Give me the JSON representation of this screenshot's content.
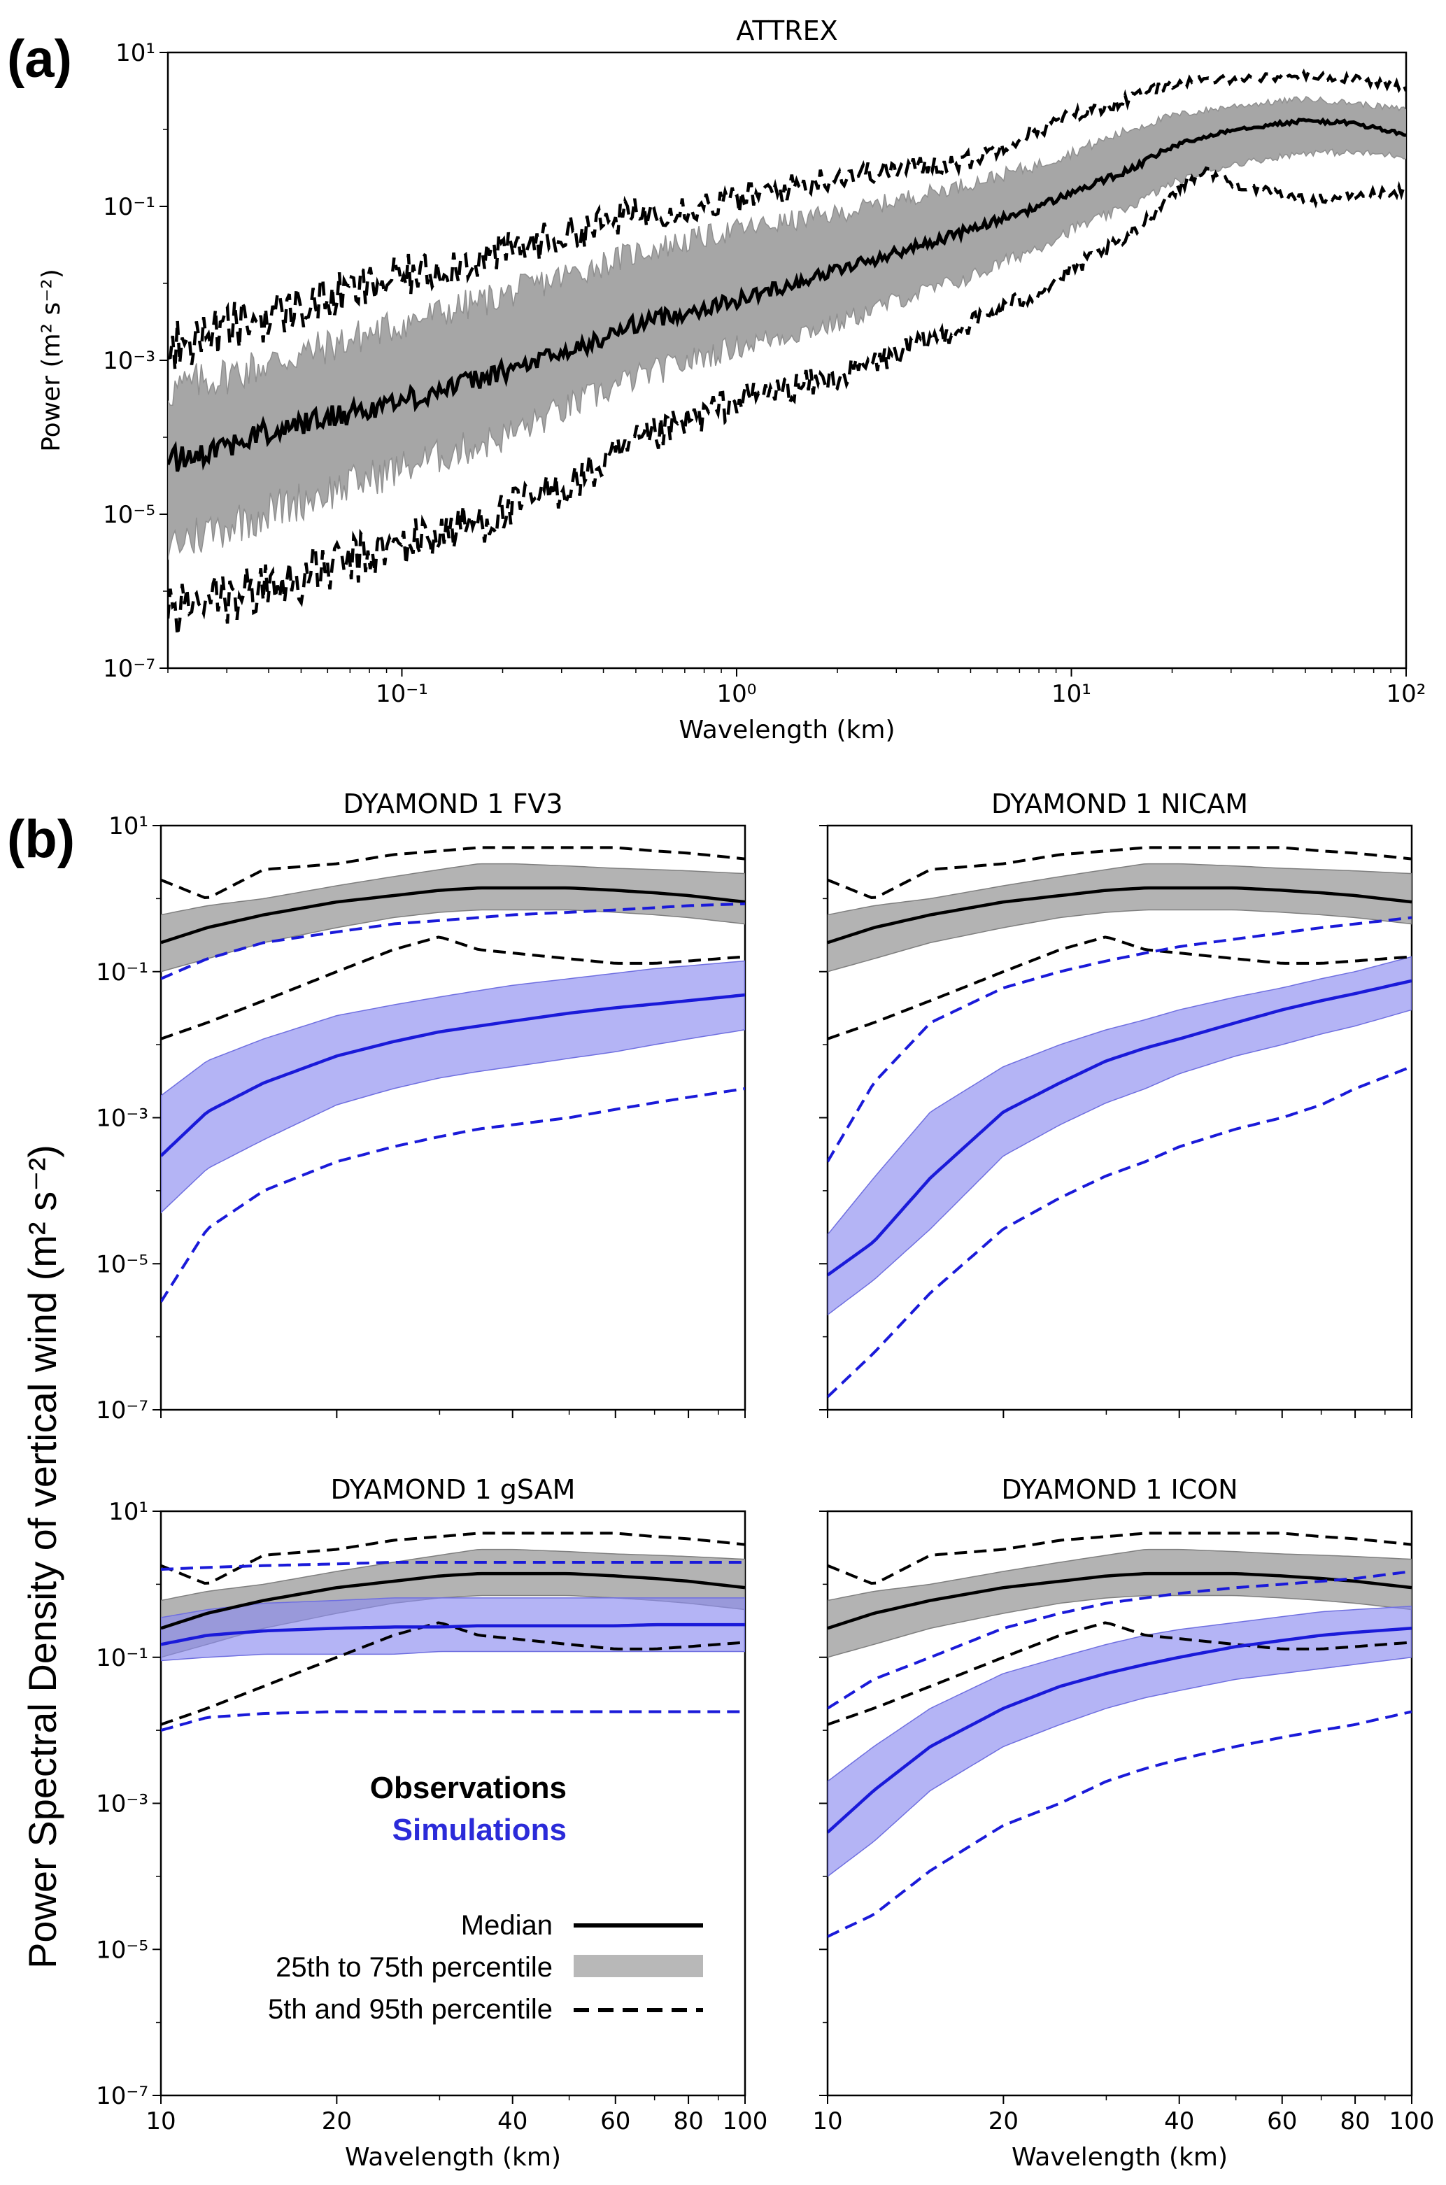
{
  "figure": {
    "panel_a_letter": "(a)",
    "panel_b_letter": "(b)",
    "shared_ylabel_b": "Power Spectral Density of vertical wind (m² s⁻²)"
  },
  "colors": {
    "obs_line": "#000000",
    "obs_band": "#a6a6a6",
    "sim_line": "#1a1ad9",
    "sim_band": "#8c8cf0"
  },
  "legend": {
    "observations": "Observations",
    "simulations": "Simulations",
    "median": "Median",
    "iqr": "25th to 75th percentile",
    "p5_95": "5th and 95th percentile"
  },
  "chart_data": [
    {
      "id": "attrex",
      "type": "line",
      "title": "ATTREX",
      "xlabel": "Wavelength (km)",
      "ylabel": "Power (m² s⁻²)",
      "xscale": "log",
      "yscale": "log",
      "xlim": [
        0.02,
        100
      ],
      "ylim": [
        1e-07,
        10
      ],
      "xticks": [
        {
          "v": 0.1,
          "label": "10⁻¹"
        },
        {
          "v": 1,
          "label": "10⁰"
        },
        {
          "v": 10,
          "label": "10¹"
        },
        {
          "v": 100,
          "label": "10²"
        }
      ],
      "yticks": [
        {
          "v": 1e-07,
          "label": "10⁻⁷"
        },
        {
          "v": 1e-05,
          "label": "10⁻⁵"
        },
        {
          "v": 0.001,
          "label": "10⁻³"
        },
        {
          "v": 0.1,
          "label": "10⁻¹"
        },
        {
          "v": 10,
          "label": "10¹"
        }
      ],
      "series": [
        {
          "role": "p95",
          "style": "dashed",
          "color": "obs",
          "noise": 0.35,
          "x": [
            0.02,
            0.05,
            0.1,
            0.2,
            0.35,
            0.5,
            1,
            2,
            3,
            5,
            8,
            10,
            15,
            20,
            30,
            50,
            70,
            100
          ],
          "y": [
            0.0015,
            0.005,
            0.012,
            0.025,
            0.05,
            0.08,
            0.12,
            0.25,
            0.3,
            0.4,
            1.0,
            1.5,
            2.5,
            4.0,
            4.5,
            5.0,
            4.5,
            3.5
          ]
        },
        {
          "role": "p75",
          "style": "band-top",
          "color": "obs",
          "x": [
            0.02,
            0.05,
            0.1,
            0.2,
            0.35,
            0.5,
            1,
            2,
            3,
            5,
            8,
            10,
            15,
            20,
            30,
            50,
            70,
            100
          ],
          "y": [
            0.0004,
            0.0012,
            0.003,
            0.007,
            0.015,
            0.025,
            0.05,
            0.08,
            0.12,
            0.2,
            0.35,
            0.5,
            1.0,
            1.5,
            2.0,
            2.5,
            2.2,
            1.8
          ]
        },
        {
          "role": "median",
          "style": "solid",
          "color": "obs",
          "noise": 0.18,
          "x": [
            0.02,
            0.05,
            0.1,
            0.2,
            0.35,
            0.5,
            1,
            2,
            3,
            5,
            8,
            10,
            15,
            20,
            30,
            50,
            70,
            100
          ],
          "y": [
            5e-05,
            0.00015,
            0.0003,
            0.0007,
            0.0015,
            0.003,
            0.006,
            0.015,
            0.025,
            0.05,
            0.1,
            0.15,
            0.3,
            0.6,
            1.0,
            1.3,
            1.2,
            0.85
          ]
        },
        {
          "role": "p25",
          "style": "band-bottom",
          "color": "obs",
          "x": [
            0.02,
            0.05,
            0.1,
            0.2,
            0.35,
            0.5,
            1,
            2,
            3,
            5,
            8,
            10,
            15,
            20,
            30,
            50,
            70,
            100
          ],
          "y": [
            4e-06,
            1.5e-05,
            4e-05,
            0.0001,
            0.0003,
            0.0006,
            0.0015,
            0.003,
            0.006,
            0.012,
            0.03,
            0.05,
            0.1,
            0.2,
            0.35,
            0.5,
            0.5,
            0.45
          ]
        },
        {
          "role": "p5",
          "style": "dashed",
          "color": "obs",
          "noise": 0.4,
          "x": [
            0.02,
            0.05,
            0.1,
            0.2,
            0.35,
            0.5,
            1,
            2,
            3,
            5,
            8,
            10,
            15,
            20,
            25,
            30,
            50,
            70,
            100
          ],
          "y": [
            5e-07,
            1.5e-06,
            4e-06,
            1e-05,
            3e-05,
            8e-05,
            0.0003,
            0.0006,
            0.0012,
            0.003,
            0.008,
            0.015,
            0.04,
            0.15,
            0.3,
            0.2,
            0.12,
            0.14,
            0.16
          ]
        }
      ]
    },
    {
      "id": "fv3",
      "type": "line",
      "title": "DYAMOND 1 FV3",
      "xlabel": "",
      "xscale": "log",
      "yscale": "log",
      "xlim": [
        10,
        100
      ],
      "ylim": [
        1e-07,
        10
      ],
      "obs": {
        "x": [
          10,
          12,
          15,
          20,
          25,
          30,
          35,
          40,
          50,
          60,
          70,
          80,
          100
        ],
        "p95": [
          1.8,
          1.0,
          2.5,
          3.0,
          4.0,
          4.5,
          5.0,
          5.0,
          5.0,
          5.0,
          4.5,
          4.2,
          3.5
        ],
        "p75": [
          0.6,
          0.8,
          1.0,
          1.5,
          2.0,
          2.5,
          3.0,
          3.0,
          2.8,
          2.6,
          2.5,
          2.4,
          2.2
        ],
        "median": [
          0.25,
          0.4,
          0.6,
          0.9,
          1.1,
          1.3,
          1.4,
          1.4,
          1.4,
          1.3,
          1.2,
          1.1,
          0.9
        ],
        "p25": [
          0.1,
          0.15,
          0.25,
          0.4,
          0.55,
          0.65,
          0.7,
          0.7,
          0.7,
          0.65,
          0.6,
          0.55,
          0.45
        ],
        "p5": [
          0.012,
          0.02,
          0.04,
          0.1,
          0.2,
          0.3,
          0.2,
          0.18,
          0.15,
          0.13,
          0.13,
          0.14,
          0.16
        ]
      },
      "sim": {
        "x": [
          10,
          12,
          15,
          20,
          25,
          30,
          35,
          40,
          50,
          60,
          70,
          80,
          100
        ],
        "p95": [
          0.08,
          0.15,
          0.25,
          0.35,
          0.45,
          0.5,
          0.55,
          0.6,
          0.65,
          0.7,
          0.75,
          0.8,
          0.85
        ],
        "p75": [
          0.002,
          0.006,
          0.012,
          0.025,
          0.035,
          0.045,
          0.055,
          0.065,
          0.08,
          0.095,
          0.11,
          0.12,
          0.14
        ],
        "median": [
          0.0003,
          0.0012,
          0.003,
          0.007,
          0.011,
          0.015,
          0.018,
          0.021,
          0.027,
          0.032,
          0.036,
          0.04,
          0.048
        ],
        "p25": [
          5e-05,
          0.0002,
          0.0005,
          0.0015,
          0.0025,
          0.0035,
          0.0043,
          0.005,
          0.0065,
          0.008,
          0.01,
          0.012,
          0.016
        ],
        "p5": [
          3e-06,
          3e-05,
          0.0001,
          0.00025,
          0.0004,
          0.00055,
          0.0007,
          0.0008,
          0.001,
          0.0013,
          0.0016,
          0.0019,
          0.0025
        ]
      }
    },
    {
      "id": "nicam",
      "type": "line",
      "title": "DYAMOND 1 NICAM",
      "xlabel": "",
      "xscale": "log",
      "yscale": "log",
      "xlim": [
        10,
        100
      ],
      "ylim": [
        1e-07,
        10
      ],
      "obs": {
        "x": [
          10,
          12,
          15,
          20,
          25,
          30,
          35,
          40,
          50,
          60,
          70,
          80,
          100
        ],
        "p95": [
          1.8,
          1.0,
          2.5,
          3.0,
          4.0,
          4.5,
          5.0,
          5.0,
          5.0,
          5.0,
          4.5,
          4.2,
          3.5
        ],
        "p75": [
          0.6,
          0.8,
          1.0,
          1.5,
          2.0,
          2.5,
          3.0,
          3.0,
          2.8,
          2.6,
          2.5,
          2.4,
          2.2
        ],
        "median": [
          0.25,
          0.4,
          0.6,
          0.9,
          1.1,
          1.3,
          1.4,
          1.4,
          1.4,
          1.3,
          1.2,
          1.1,
          0.9
        ],
        "p25": [
          0.1,
          0.15,
          0.25,
          0.4,
          0.55,
          0.65,
          0.7,
          0.7,
          0.7,
          0.65,
          0.6,
          0.55,
          0.45
        ],
        "p5": [
          0.012,
          0.02,
          0.04,
          0.1,
          0.2,
          0.3,
          0.2,
          0.18,
          0.15,
          0.13,
          0.13,
          0.14,
          0.16
        ]
      },
      "sim": {
        "x": [
          10,
          12,
          15,
          20,
          25,
          30,
          35,
          40,
          50,
          60,
          70,
          80,
          100
        ],
        "p95": [
          0.00025,
          0.003,
          0.02,
          0.06,
          0.1,
          0.14,
          0.18,
          0.22,
          0.28,
          0.34,
          0.4,
          0.45,
          0.55
        ],
        "p75": [
          2.5e-05,
          0.00015,
          0.0012,
          0.005,
          0.01,
          0.016,
          0.022,
          0.03,
          0.045,
          0.06,
          0.08,
          0.1,
          0.16
        ],
        "median": [
          7e-06,
          2e-05,
          0.00015,
          0.0012,
          0.003,
          0.006,
          0.009,
          0.012,
          0.02,
          0.03,
          0.04,
          0.05,
          0.075
        ],
        "p25": [
          2e-06,
          6e-06,
          3e-05,
          0.0003,
          0.0008,
          0.0016,
          0.0025,
          0.004,
          0.007,
          0.01,
          0.014,
          0.018,
          0.03
        ],
        "p5": [
          1.5e-07,
          6e-07,
          4e-06,
          3e-05,
          8e-05,
          0.00016,
          0.00025,
          0.0004,
          0.0007,
          0.001,
          0.0015,
          0.0025,
          0.005
        ]
      }
    },
    {
      "id": "gsam",
      "type": "line",
      "title": "DYAMOND 1 gSAM",
      "xlabel": "Wavelength (km)",
      "xscale": "log",
      "yscale": "log",
      "xlim": [
        10,
        100
      ],
      "ylim": [
        1e-07,
        10
      ],
      "obs": {
        "x": [
          10,
          12,
          15,
          20,
          25,
          30,
          35,
          40,
          50,
          60,
          70,
          80,
          100
        ],
        "p95": [
          1.8,
          1.0,
          2.5,
          3.0,
          4.0,
          4.5,
          5.0,
          5.0,
          5.0,
          5.0,
          4.5,
          4.2,
          3.5
        ],
        "p75": [
          0.6,
          0.8,
          1.0,
          1.5,
          2.0,
          2.5,
          3.0,
          3.0,
          2.8,
          2.6,
          2.5,
          2.4,
          2.2
        ],
        "median": [
          0.25,
          0.4,
          0.6,
          0.9,
          1.1,
          1.3,
          1.4,
          1.4,
          1.4,
          1.3,
          1.2,
          1.1,
          0.9
        ],
        "p25": [
          0.1,
          0.15,
          0.25,
          0.4,
          0.55,
          0.65,
          0.7,
          0.7,
          0.7,
          0.65,
          0.6,
          0.55,
          0.45
        ],
        "p5": [
          0.012,
          0.02,
          0.04,
          0.1,
          0.2,
          0.3,
          0.2,
          0.18,
          0.15,
          0.13,
          0.13,
          0.14,
          0.16
        ]
      },
      "sim": {
        "x": [
          10,
          12,
          15,
          20,
          25,
          30,
          35,
          40,
          50,
          60,
          70,
          80,
          100
        ],
        "p95": [
          1.6,
          1.7,
          1.8,
          1.9,
          2.0,
          2.0,
          2.0,
          2.0,
          2.0,
          2.0,
          2.0,
          2.0,
          2.0
        ],
        "p75": [
          0.35,
          0.45,
          0.55,
          0.6,
          0.65,
          0.65,
          0.65,
          0.65,
          0.65,
          0.65,
          0.65,
          0.65,
          0.65
        ],
        "median": [
          0.15,
          0.2,
          0.23,
          0.25,
          0.26,
          0.26,
          0.27,
          0.27,
          0.27,
          0.27,
          0.28,
          0.28,
          0.28
        ],
        "p25": [
          0.09,
          0.1,
          0.11,
          0.11,
          0.11,
          0.12,
          0.12,
          0.12,
          0.12,
          0.12,
          0.12,
          0.12,
          0.12
        ],
        "p5": [
          0.01,
          0.015,
          0.017,
          0.018,
          0.018,
          0.018,
          0.018,
          0.018,
          0.018,
          0.018,
          0.018,
          0.018,
          0.018
        ]
      }
    },
    {
      "id": "icon",
      "type": "line",
      "title": "DYAMOND 1 ICON",
      "xlabel": "Wavelength (km)",
      "xscale": "log",
      "yscale": "log",
      "xlim": [
        10,
        100
      ],
      "ylim": [
        1e-07,
        10
      ],
      "obs": {
        "x": [
          10,
          12,
          15,
          20,
          25,
          30,
          35,
          40,
          50,
          60,
          70,
          80,
          100
        ],
        "p95": [
          1.8,
          1.0,
          2.5,
          3.0,
          4.0,
          4.5,
          5.0,
          5.0,
          5.0,
          5.0,
          4.5,
          4.2,
          3.5
        ],
        "p75": [
          0.6,
          0.8,
          1.0,
          1.5,
          2.0,
          2.5,
          3.0,
          3.0,
          2.8,
          2.6,
          2.5,
          2.4,
          2.2
        ],
        "median": [
          0.25,
          0.4,
          0.6,
          0.9,
          1.1,
          1.3,
          1.4,
          1.4,
          1.4,
          1.3,
          1.2,
          1.1,
          0.9
        ],
        "p25": [
          0.1,
          0.15,
          0.25,
          0.4,
          0.55,
          0.65,
          0.7,
          0.7,
          0.7,
          0.65,
          0.6,
          0.55,
          0.45
        ],
        "p5": [
          0.012,
          0.02,
          0.04,
          0.1,
          0.2,
          0.3,
          0.2,
          0.18,
          0.15,
          0.13,
          0.13,
          0.14,
          0.16
        ]
      },
      "sim": {
        "x": [
          10,
          12,
          15,
          20,
          25,
          30,
          35,
          40,
          50,
          60,
          70,
          80,
          100
        ],
        "p95": [
          0.02,
          0.05,
          0.1,
          0.25,
          0.4,
          0.55,
          0.65,
          0.75,
          0.9,
          1.0,
          1.1,
          1.2,
          1.5
        ],
        "p75": [
          0.002,
          0.006,
          0.02,
          0.06,
          0.1,
          0.15,
          0.2,
          0.24,
          0.3,
          0.36,
          0.42,
          0.45,
          0.5
        ],
        "median": [
          0.0004,
          0.0015,
          0.006,
          0.02,
          0.04,
          0.06,
          0.08,
          0.1,
          0.14,
          0.17,
          0.2,
          0.22,
          0.25
        ],
        "p25": [
          0.0001,
          0.0003,
          0.0015,
          0.006,
          0.012,
          0.02,
          0.028,
          0.035,
          0.05,
          0.06,
          0.07,
          0.08,
          0.1
        ],
        "p5": [
          1.5e-05,
          3e-05,
          0.00012,
          0.0005,
          0.001,
          0.002,
          0.003,
          0.004,
          0.006,
          0.008,
          0.01,
          0.012,
          0.018
        ]
      }
    }
  ],
  "panel_b_ticks": {
    "xticks": [
      {
        "v": 10,
        "label": "10"
      },
      {
        "v": 20,
        "label": "20"
      },
      {
        "v": 40,
        "label": "40"
      },
      {
        "v": 60,
        "label": "60"
      },
      {
        "v": 80,
        "label": "80"
      },
      {
        "v": 100,
        "label": "100"
      }
    ],
    "yticks": [
      {
        "v": 1e-07,
        "label": "10⁻⁷"
      },
      {
        "v": 1e-05,
        "label": "10⁻⁵"
      },
      {
        "v": 0.001,
        "label": "10⁻³"
      },
      {
        "v": 0.1,
        "label": "10⁻¹"
      },
      {
        "v": 10,
        "label": "10¹"
      }
    ]
  }
}
